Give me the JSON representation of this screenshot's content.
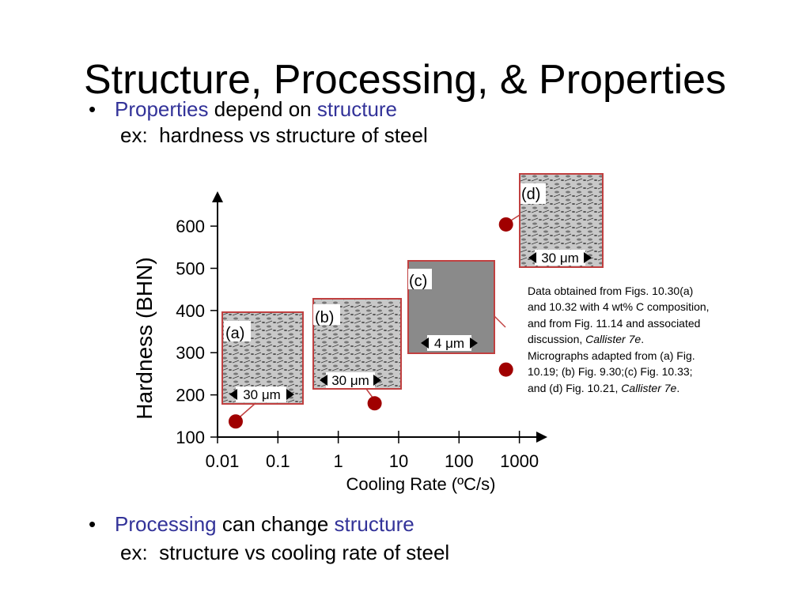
{
  "title": "Structure, Processing, & Properties",
  "bullet1": {
    "parts": [
      "Properties",
      "depend on",
      "structure"
    ],
    "example": "ex:  hardness vs structure of steel"
  },
  "bullet2": {
    "parts": [
      "Processing",
      "can change",
      "structure"
    ],
    "example": "ex:  structure vs cooling rate of steel"
  },
  "note": [
    [
      "Data obtained from Figs. 10.30(a)"
    ],
    [
      "and 10.32 with 4 wt% C composition,"
    ],
    [
      "and from Fig. 11.14 and associated"
    ],
    [
      "discussion, ",
      "Callister 7e",
      "."
    ],
    [
      "Micrographs adapted from (a) Fig."
    ],
    [
      "10.19; (b) Fig. 9.30;(c) Fig. 10.33;"
    ],
    [
      "and (d) Fig. 10.21, ",
      "Callister 7e",
      "."
    ]
  ],
  "chart_data": {
    "type": "scatter",
    "ylabel": "Hardness (BHN)",
    "xlabel": "Cooling Rate (ºC/s)",
    "xscale": "log",
    "x": [
      0.02,
      4,
      600,
      600
    ],
    "values": [
      137,
      180,
      260,
      604
    ],
    "color": "#a00000",
    "point_labels": [
      "(a)",
      "(b)",
      "(c)",
      "(d)"
    ],
    "scale_bars": [
      "30 μm",
      "30 μm",
      "4 μm",
      "30 μm"
    ],
    "xlim": [
      0.01,
      2500
    ],
    "xticks": [
      0.01,
      0.1,
      1,
      10,
      100,
      1000
    ],
    "ylim": [
      100,
      677
    ],
    "yticks": [
      100,
      200,
      300,
      400,
      500,
      600
    ]
  }
}
